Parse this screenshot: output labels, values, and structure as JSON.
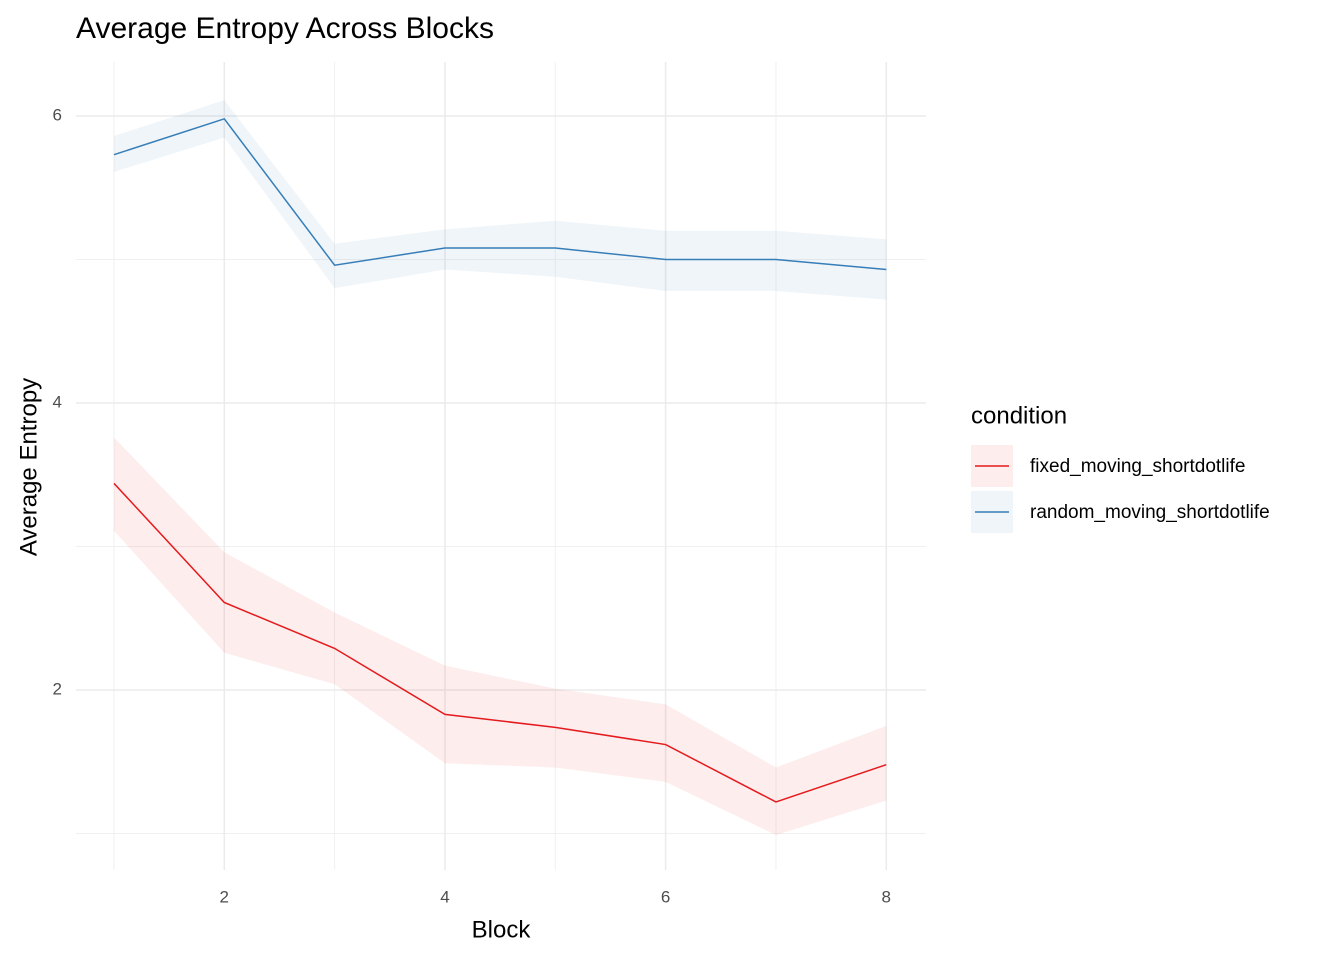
{
  "chart_data": {
    "type": "line",
    "title": "Average Entropy Across Blocks",
    "x_label": "Block",
    "y_label": "Average Entropy",
    "legend_title": "condition",
    "x": [
      1,
      2,
      3,
      4,
      5,
      6,
      7,
      8
    ],
    "series": [
      {
        "name": "fixed_moving_shortdotlife",
        "color": "#e41a1c",
        "values": [
          3.44,
          2.61,
          2.29,
          1.83,
          1.74,
          1.62,
          1.22,
          1.48
        ],
        "lower": [
          3.11,
          2.26,
          2.04,
          1.49,
          1.46,
          1.36,
          0.99,
          1.23
        ],
        "upper": [
          3.76,
          2.96,
          2.54,
          2.17,
          2.01,
          1.9,
          1.46,
          1.75
        ]
      },
      {
        "name": "random_moving_shortdotlife",
        "color": "#377eb8",
        "values": [
          5.73,
          5.98,
          4.96,
          5.08,
          5.08,
          5.0,
          5.0,
          4.93
        ],
        "lower": [
          5.61,
          5.85,
          4.8,
          4.93,
          4.88,
          4.78,
          4.78,
          4.72
        ],
        "upper": [
          5.86,
          6.11,
          5.11,
          5.21,
          5.27,
          5.2,
          5.2,
          5.14
        ]
      }
    ],
    "xlim": [
      0.656,
      8.36
    ],
    "ylim": [
      0.746,
      6.376
    ],
    "xticks": [
      2,
      4,
      6,
      8
    ],
    "yticks": [
      2,
      4,
      6
    ],
    "grid": true,
    "legend": "right"
  }
}
